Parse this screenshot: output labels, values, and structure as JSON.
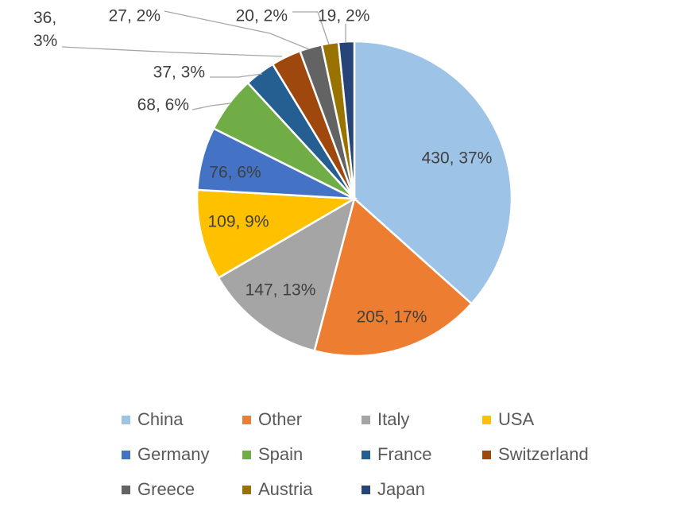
{
  "chart_data": {
    "type": "pie",
    "title": "",
    "start_angle_deg": 0,
    "direction": "clockwise",
    "slices": [
      {
        "name": "China",
        "value": 430,
        "percent": "37%",
        "color": "#9dc3e6"
      },
      {
        "name": "Other",
        "value": 205,
        "percent": "17%",
        "color": "#ed7d31"
      },
      {
        "name": "Italy",
        "value": 147,
        "percent": "13%",
        "color": "#a5a5a5"
      },
      {
        "name": "USA",
        "value": 109,
        "percent": "9%",
        "color": "#ffc000"
      },
      {
        "name": "Germany",
        "value": 76,
        "percent": "6%",
        "color": "#4472c4"
      },
      {
        "name": "Spain",
        "value": 68,
        "percent": "6%",
        "color": "#70ad47"
      },
      {
        "name": "France",
        "value": 37,
        "percent": "3%",
        "color": "#255e91"
      },
      {
        "name": "Switzerland",
        "value": 36,
        "percent": "3%",
        "color": "#9e480e"
      },
      {
        "name": "Greece",
        "value": 27,
        "percent": "2%",
        "color": "#636363"
      },
      {
        "name": "Austria",
        "value": 20,
        "percent": "2%",
        "color": "#997300"
      },
      {
        "name": "Japan",
        "value": 19,
        "percent": "2%",
        "color": "#264478"
      }
    ],
    "data_labels": [
      "430, 37%",
      "205, 17%",
      "147, 13%",
      "109, 9%",
      "76, 6%",
      "68, 6%",
      "37, 3%",
      "36,\n3%",
      "27, 2%",
      "20, 2%",
      "19, 2%"
    ],
    "legend_position": "bottom"
  }
}
